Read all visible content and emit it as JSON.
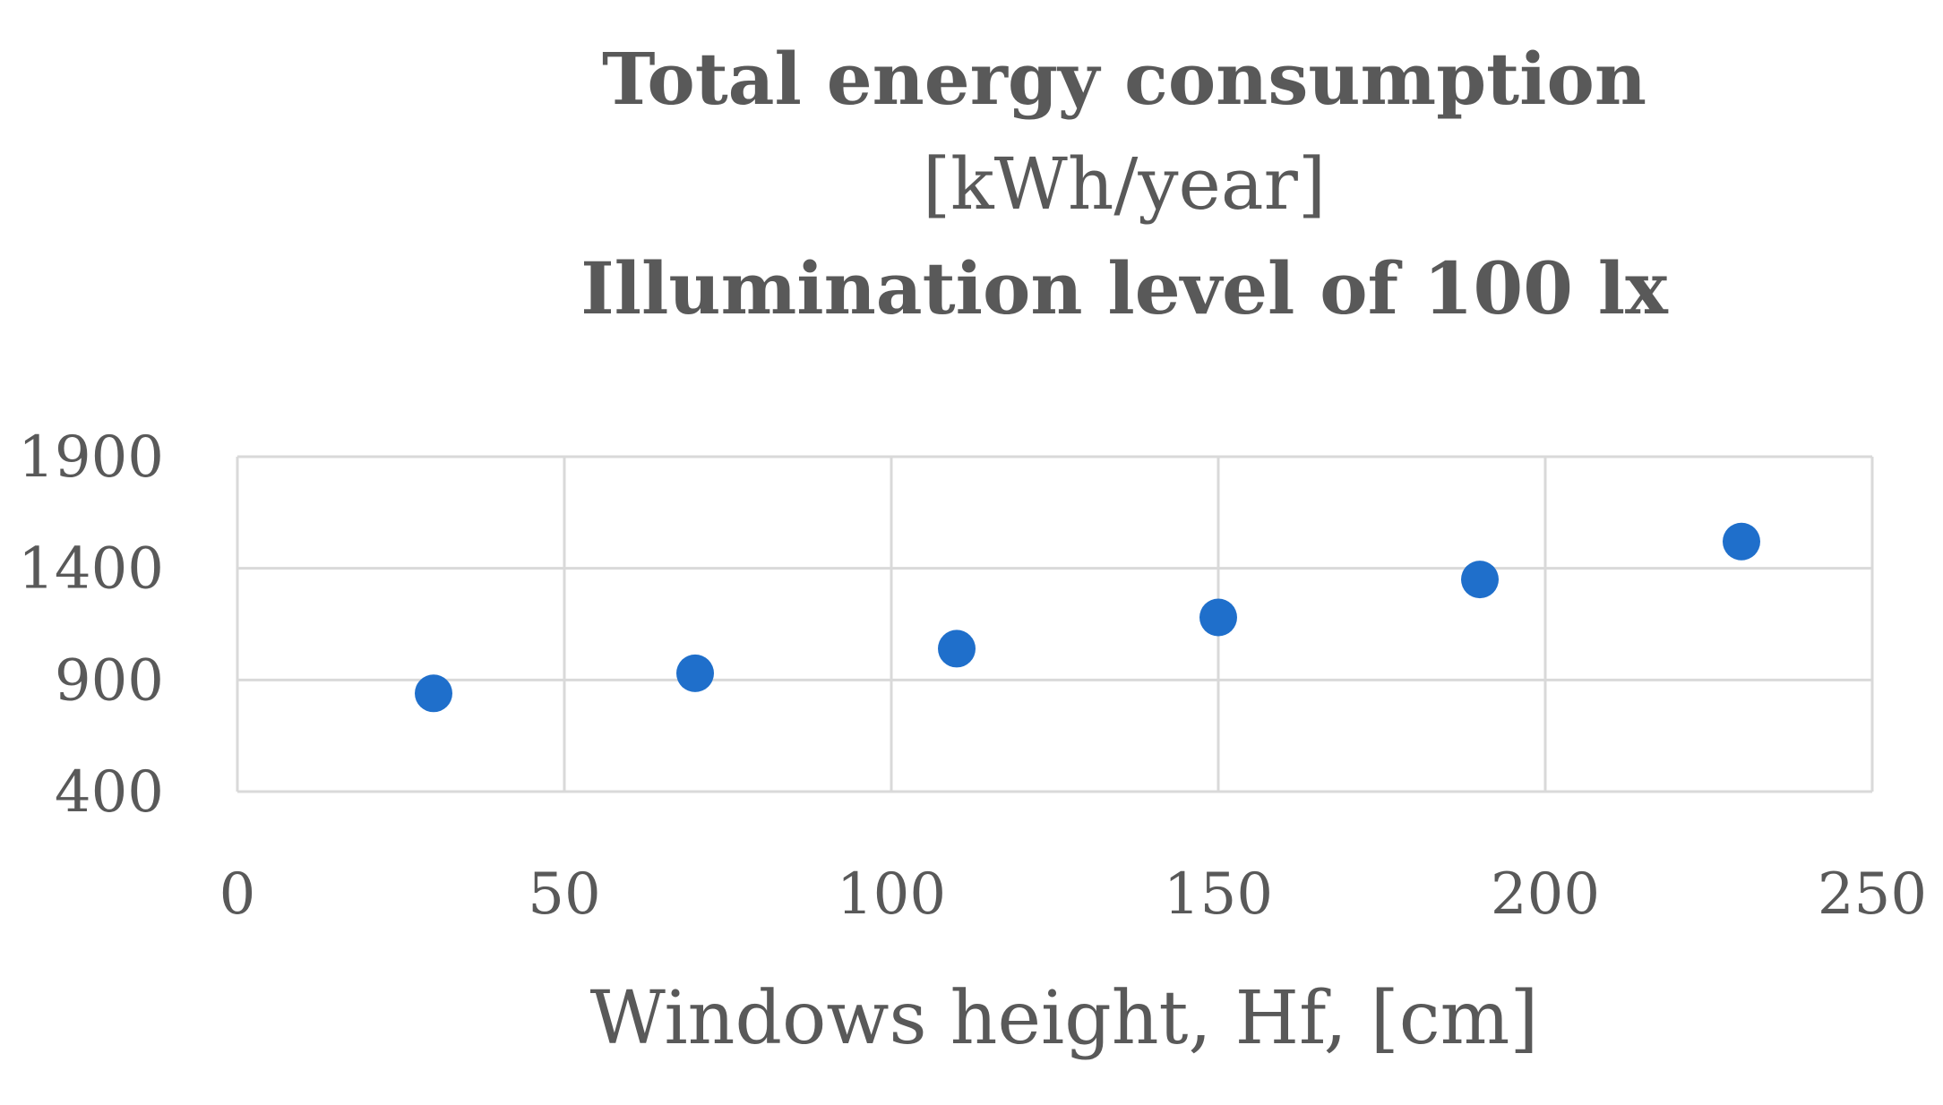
{
  "chart_data": {
    "type": "scatter",
    "title": [
      "Total energy consumption",
      "[kWh/year]",
      "Illumination level of 100 lx"
    ],
    "xlabel": "Windows height, Hf, [cm]",
    "ylabel": "",
    "xlim": [
      0,
      250
    ],
    "ylim": [
      400,
      1900
    ],
    "xticks": [
      "0",
      "50",
      "100",
      "150",
      "200",
      "250"
    ],
    "yticks": [
      "400",
      "900",
      "1400",
      "1900"
    ],
    "grid": true,
    "legend": "none",
    "series": [
      {
        "name": "Total energy consumption",
        "color": "#1F6FCB",
        "x": [
          30,
          70,
          110,
          150,
          190,
          230
        ],
        "y": [
          840,
          930,
          1040,
          1180,
          1350,
          1520
        ]
      }
    ]
  }
}
